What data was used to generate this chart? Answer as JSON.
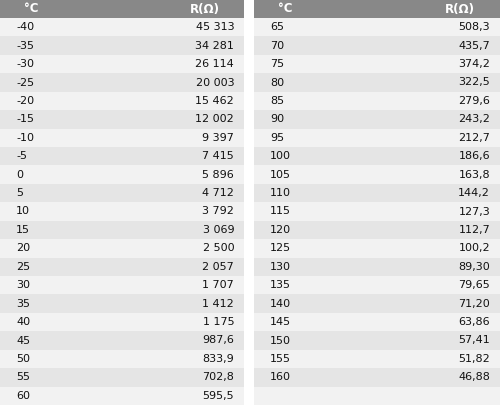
{
  "col1_header": "°C",
  "col2_header": "R(Ω)",
  "left_data": [
    [
      "-40",
      "45 313"
    ],
    [
      "-35",
      "34 281"
    ],
    [
      "-30",
      "26 114"
    ],
    [
      "-25",
      "20 003"
    ],
    [
      "-20",
      "15 462"
    ],
    [
      "-15",
      "12 002"
    ],
    [
      "-10",
      "9 397"
    ],
    [
      "-5",
      "7 415"
    ],
    [
      "0",
      "5 896"
    ],
    [
      "5",
      "4 712"
    ],
    [
      "10",
      "3 792"
    ],
    [
      "15",
      "3 069"
    ],
    [
      "20",
      "2 500"
    ],
    [
      "25",
      "2 057"
    ],
    [
      "30",
      "1 707"
    ],
    [
      "35",
      "1 412"
    ],
    [
      "40",
      "1 175"
    ],
    [
      "45",
      "987,6"
    ],
    [
      "50",
      "833,9"
    ],
    [
      "55",
      "702,8"
    ],
    [
      "60",
      "595,5"
    ]
  ],
  "right_data": [
    [
      "65",
      "508,3"
    ],
    [
      "70",
      "435,7"
    ],
    [
      "75",
      "374,2"
    ],
    [
      "80",
      "322,5"
    ],
    [
      "85",
      "279,6"
    ],
    [
      "90",
      "243,2"
    ],
    [
      "95",
      "212,7"
    ],
    [
      "100",
      "186,6"
    ],
    [
      "105",
      "163,8"
    ],
    [
      "110",
      "144,2"
    ],
    [
      "115",
      "127,3"
    ],
    [
      "120",
      "112,7"
    ],
    [
      "125",
      "100,2"
    ],
    [
      "130",
      "89,30"
    ],
    [
      "135",
      "79,65"
    ],
    [
      "140",
      "71,20"
    ],
    [
      "145",
      "63,86"
    ],
    [
      "150",
      "57,41"
    ],
    [
      "155",
      "51,82"
    ],
    [
      "160",
      "46,88"
    ]
  ],
  "header_bg": "#888888",
  "header_text": "#ffffff",
  "row_bg_light": "#f2f2f2",
  "row_bg_dark": "#e5e5e5",
  "text_color": "#111111",
  "font_size": 8.0,
  "header_font_size": 8.5,
  "fig_bg": "#ffffff",
  "fig_width": 5.0,
  "fig_height": 4.05,
  "dpi": 100
}
